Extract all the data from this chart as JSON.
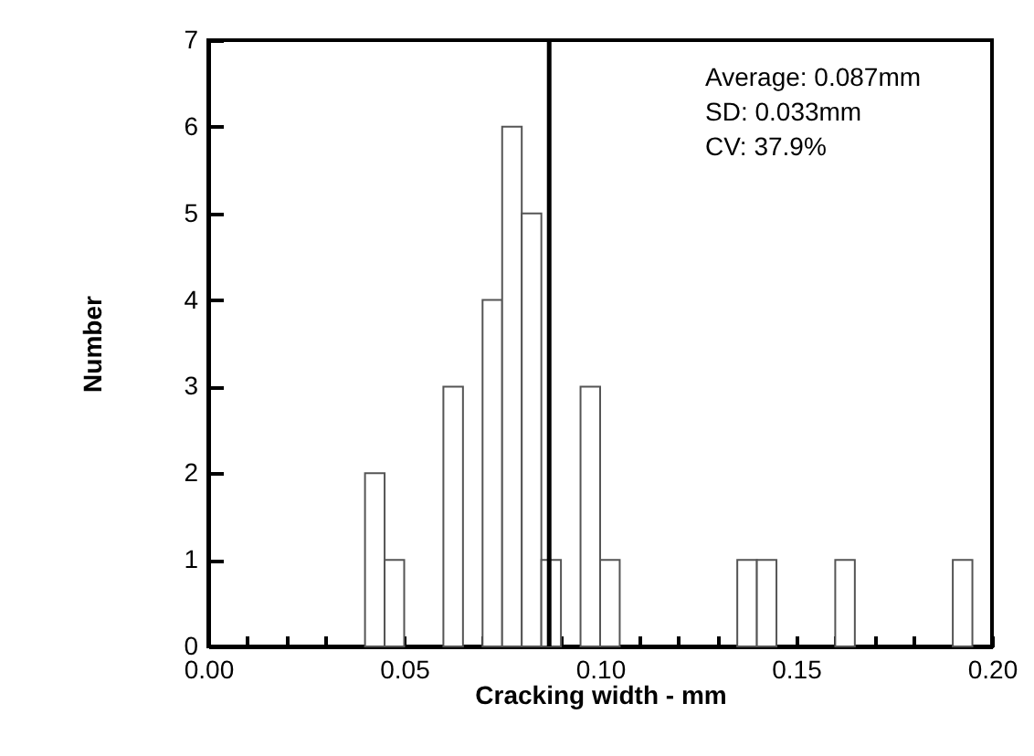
{
  "chart_data": {
    "type": "histogram",
    "xlabel": "Cracking width - mm",
    "ylabel": "Number",
    "bins": [
      0.04,
      0.045,
      0.05,
      0.055,
      0.06,
      0.065,
      0.07,
      0.075,
      0.08,
      0.085,
      0.09,
      0.095,
      0.1,
      0.105,
      0.11,
      0.115,
      0.12,
      0.125,
      0.13,
      0.135,
      0.14,
      0.145,
      0.15,
      0.155,
      0.16,
      0.165,
      0.17,
      0.175,
      0.18,
      0.185,
      0.19,
      0.195
    ],
    "values": [
      2,
      1,
      0,
      0,
      3,
      0,
      4,
      6,
      5,
      1,
      0,
      3,
      1,
      0,
      0,
      0,
      0,
      0,
      0,
      1,
      1,
      0,
      0,
      0,
      1,
      0,
      0,
      0,
      0,
      0,
      1
    ],
    "color": "#ffffff",
    "xlim": [
      0,
      0.2
    ],
    "xticks": [
      {
        "value": 0,
        "label": "0.00"
      },
      {
        "value": 0.01,
        "label": null
      },
      {
        "value": 0.02,
        "label": null
      },
      {
        "value": 0.03,
        "label": null
      },
      {
        "value": 0.04,
        "label": null
      },
      {
        "value": 0.05,
        "label": "0.05"
      },
      {
        "value": 0.06,
        "label": null
      },
      {
        "value": 0.07,
        "label": null
      },
      {
        "value": 0.08,
        "label": null
      },
      {
        "value": 0.09,
        "label": null
      },
      {
        "value": 0.1,
        "label": "0.10"
      },
      {
        "value": 0.11,
        "label": null
      },
      {
        "value": 0.12,
        "label": null
      },
      {
        "value": 0.13,
        "label": null
      },
      {
        "value": 0.14,
        "label": null
      },
      {
        "value": 0.15,
        "label": "0.15"
      },
      {
        "value": 0.16,
        "label": null
      },
      {
        "value": 0.17,
        "label": null
      },
      {
        "value": 0.18,
        "label": null
      },
      {
        "value": 0.19,
        "label": null
      },
      {
        "value": 0.2,
        "label": "0.20"
      }
    ],
    "ylim": [
      0,
      7
    ],
    "yticks": [
      0,
      1,
      2,
      3,
      4,
      5,
      6,
      7
    ],
    "ref_lines": [
      {
        "axis": "x",
        "value": 0.087
      }
    ],
    "annotations": [
      "Average: 0.087mm",
      "SD: 0.033mm",
      "CV: 37.9%"
    ],
    "grid": false
  }
}
